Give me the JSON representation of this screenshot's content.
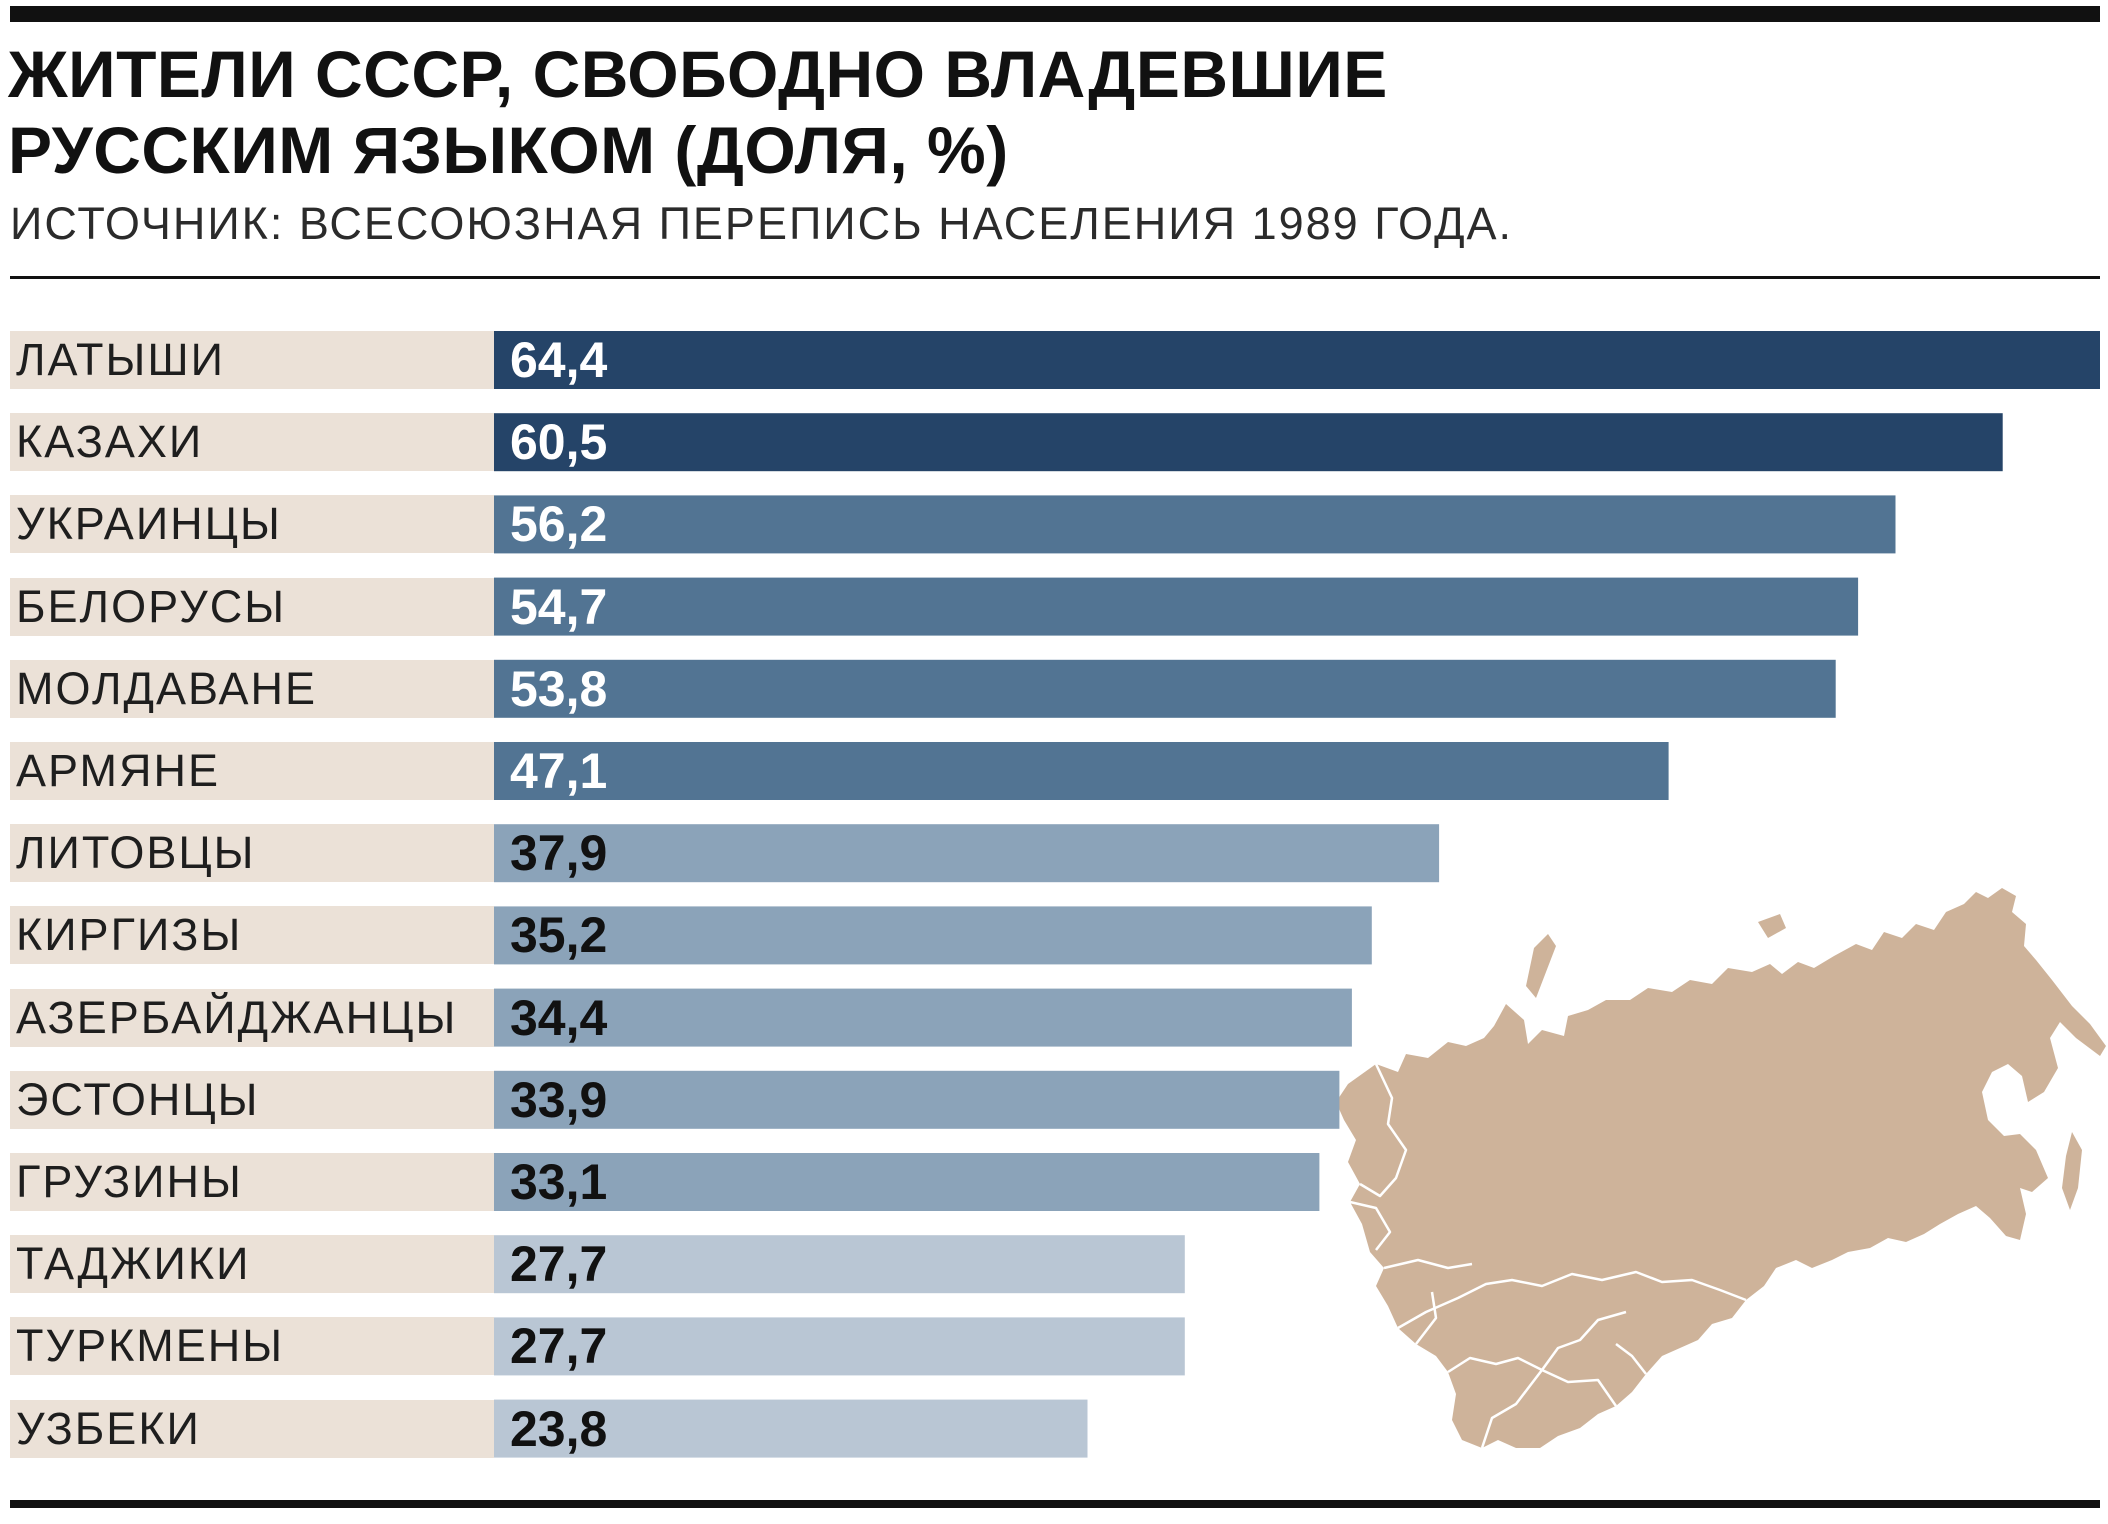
{
  "title_lines": [
    "ЖИТЕЛИ СССР, СВОБОДНО ВЛАДЕВШИЕ",
    "РУССКИМ ЯЗЫКОМ (ДОЛЯ, %)"
  ],
  "subtitle": "ИСТОЧНИК: ВСЕСОЮЗНАЯ ПЕРЕПИСЬ НАСЕЛЕНИЯ 1989 ГОДА.",
  "colors": {
    "tier_dark": "#254468",
    "tier_mid": "#527493",
    "tier_light": "#8ba3b9",
    "tier_pale": "#b9c6d4",
    "label_background": "#ebe1d7",
    "map_fill": "#ceb39a",
    "value_on_dark": "#ffffff",
    "value_on_light": "#111111"
  },
  "map": {
    "icon": "ussr-map-icon"
  },
  "chart_data": {
    "type": "bar",
    "orientation": "horizontal",
    "title": "ЖИТЕЛИ СССР, СВОБОДНО ВЛАДЕВШИЕ РУССКИМ ЯЗЫКОМ (ДОЛЯ, %)",
    "subtitle": "ИСТОЧНИК: ВСЕСОЮЗНАЯ ПЕРЕПИСЬ НАСЕЛЕНИЯ 1989 ГОДА.",
    "categories": [
      "ЛАТЫШИ",
      "КАЗАХИ",
      "УКРАИНЦЫ",
      "БЕЛОРУСЫ",
      "МОЛДАВАНЕ",
      "АРМЯНЕ",
      "ЛИТОВЦЫ",
      "КИРГИЗЫ",
      "АЗЕРБАЙДЖАНЦЫ",
      "ЭСТОНЦЫ",
      "ГРУЗИНЫ",
      "ТАДЖИКИ",
      "ТУРКМЕНЫ",
      "УЗБЕКИ"
    ],
    "values": [
      64.4,
      60.5,
      56.2,
      54.7,
      53.8,
      47.1,
      37.9,
      35.2,
      34.4,
      33.9,
      33.1,
      27.7,
      27.7,
      23.8
    ],
    "value_labels": [
      "64,4",
      "60,5",
      "56,2",
      "54,7",
      "53,8",
      "47,1",
      "37,9",
      "35,2",
      "34,4",
      "33,9",
      "33,1",
      "27,7",
      "27,7",
      "23,8"
    ],
    "color_tiers": [
      "dark",
      "dark",
      "mid",
      "mid",
      "mid",
      "mid",
      "light",
      "light",
      "light",
      "light",
      "light",
      "pale",
      "pale",
      "pale"
    ],
    "xlim": [
      0,
      64.4
    ],
    "grid": false,
    "axes_visible": false,
    "legend": "none"
  }
}
